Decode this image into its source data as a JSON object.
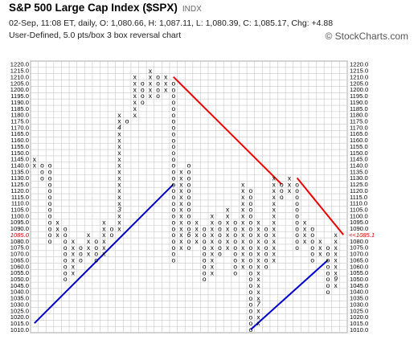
{
  "header": {
    "title": "S&P 500 Large Cap Index ($SPX)",
    "exchange": "INDX",
    "quote": "02-Sep, 11:08 ET, daily, O: 1,080.66, H: 1,087.11, L: 1,080.39, C: 1,085.17, Chg: +4.88",
    "settings": "User-Defined, 5.0 pts/box 3 box reversal chart",
    "brand": "© StockCharts.com"
  },
  "chart_data": {
    "type": "point-and-figure",
    "box_size": 5,
    "reversal": 3,
    "ylim": [
      1010,
      1220
    ],
    "current_price": 1085.17,
    "current_label_left": "1085.0",
    "current_label_right": "<<1085.1",
    "columns": [
      {
        "type": "X",
        "from": 1140,
        "to": 1145
      },
      {
        "type": "O",
        "from": 1130,
        "to": 1140
      },
      {
        "type": "O",
        "from": 1080,
        "to": 1140
      },
      {
        "type": "X",
        "from": 1085,
        "to": 1095
      },
      {
        "type": "O",
        "from": 1050,
        "to": 1090
      },
      {
        "type": "X",
        "from": 1055,
        "to": 1080
      },
      {
        "type": "O",
        "from": 1065,
        "to": 1075
      },
      {
        "type": "X",
        "from": 1070,
        "to": 1085
      },
      {
        "type": "O",
        "from": 1065,
        "to": 1080
      },
      {
        "type": "X",
        "from": 1070,
        "to": 1095
      },
      {
        "type": "O",
        "from": 1085,
        "to": 1090
      },
      {
        "type": "X",
        "from": 1090,
        "to": 1180
      },
      {
        "type": "O",
        "from": 1175,
        "to": 1175
      },
      {
        "type": "X",
        "from": 1180,
        "to": 1210
      },
      {
        "type": "O",
        "from": 1190,
        "to": 1205
      },
      {
        "type": "X",
        "from": 1195,
        "to": 1215
      },
      {
        "type": "O",
        "from": 1195,
        "to": 1210
      },
      {
        "type": "X",
        "from": 1200,
        "to": 1210
      },
      {
        "type": "O",
        "from": 1065,
        "to": 1205
      },
      {
        "type": "X",
        "from": 1075,
        "to": 1135
      },
      {
        "type": "O",
        "from": 1075,
        "to": 1140
      },
      {
        "type": "X",
        "from": 1080,
        "to": 1095
      },
      {
        "type": "O",
        "from": 1050,
        "to": 1090
      },
      {
        "type": "X",
        "from": 1055,
        "to": 1100
      },
      {
        "type": "O",
        "from": 1070,
        "to": 1095
      },
      {
        "type": "X",
        "from": 1075,
        "to": 1105
      },
      {
        "type": "O",
        "from": 1055,
        "to": 1095
      },
      {
        "type": "X",
        "from": 1060,
        "to": 1125
      },
      {
        "type": "O",
        "from": 1010,
        "to": 1120
      },
      {
        "type": "X",
        "from": 1015,
        "to": 1095
      },
      {
        "type": "O",
        "from": 1060,
        "to": 1090
      },
      {
        "type": "X",
        "from": 1065,
        "to": 1130
      },
      {
        "type": "O",
        "from": 1115,
        "to": 1125
      },
      {
        "type": "X",
        "from": 1120,
        "to": 1130
      },
      {
        "type": "O",
        "from": 1075,
        "to": 1125
      },
      {
        "type": "X",
        "from": 1080,
        "to": 1095
      },
      {
        "type": "O",
        "from": 1065,
        "to": 1090
      },
      {
        "type": "X",
        "from": 1070,
        "to": 1080
      },
      {
        "type": "O",
        "from": 1040,
        "to": 1075
      },
      {
        "type": "X",
        "from": 1045,
        "to": 1085
      }
    ],
    "month_markers": [
      {
        "label": "3",
        "col": 11,
        "price": 1105
      },
      {
        "label": "4",
        "col": 11,
        "price": 1170
      },
      {
        "label": "5",
        "col": 17,
        "price": 1195
      },
      {
        "label": "6",
        "col": 20,
        "price": 1085
      },
      {
        "label": "7",
        "col": 29,
        "price": 1030
      },
      {
        "label": "8",
        "col": 32,
        "price": 1085
      },
      {
        "label": "9",
        "col": 39,
        "price": 1050
      }
    ],
    "trendlines": [
      {
        "color": "#0000cc",
        "from": {
          "col": 0,
          "price": 1015
        },
        "to": {
          "col": 18,
          "price": 1125
        }
      },
      {
        "color": "#ee0000",
        "from": {
          "col": 18,
          "price": 1210
        },
        "to": {
          "col": 32,
          "price": 1125
        }
      },
      {
        "color": "#ee0000",
        "from": {
          "col": 34,
          "price": 1130
        },
        "to": {
          "col": 40,
          "price": 1085
        }
      },
      {
        "color": "#0000cc",
        "from": {
          "col": 28,
          "price": 1010
        },
        "to": {
          "col": 38,
          "price": 1065
        }
      }
    ]
  }
}
